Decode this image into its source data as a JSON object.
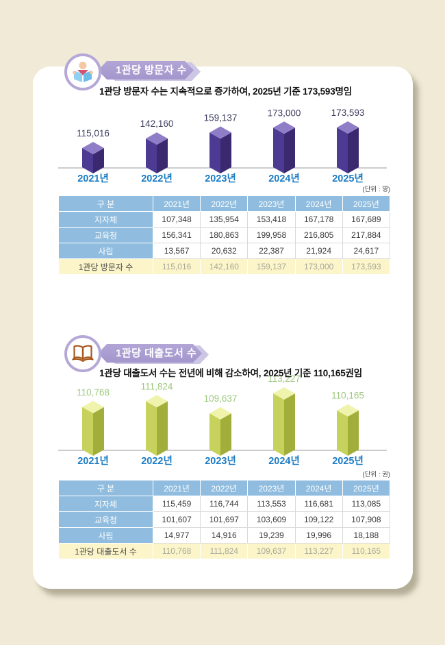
{
  "colors": {
    "page_bg": "#f1ead7",
    "card_bg": "#ffffff",
    "banner_purple": "#a89bd0",
    "banner_echo": "#cdc7e5",
    "table_header_blue": "#90bddf",
    "table_total_yellow": "#fcf5c9",
    "year_label_blue": "#1b7cc4"
  },
  "sections": [
    {
      "icon": "reading-person-icon",
      "banner": "1관당 방문자 수",
      "subtitle": "1관당 방문자 수는 지속적으로 증가하여, 2025년 기준 173,593명임",
      "unit": "(단위 : 명)",
      "table": {
        "corner": "구 분",
        "columns": [
          "2021년",
          "2022년",
          "2023년",
          "2024년",
          "2025년"
        ],
        "rows": [
          {
            "label": "지자체",
            "values": [
              "107,348",
              "135,954",
              "153,418",
              "167,178",
              "167,689"
            ]
          },
          {
            "label": "교육청",
            "values": [
              "156,341",
              "180,863",
              "199,958",
              "216,805",
              "217,884"
            ]
          },
          {
            "label": "사립",
            "values": [
              "13,567",
              "20,632",
              "22,387",
              "21,924",
              "24,617"
            ]
          }
        ],
        "total": {
          "label": "1관당 방문자 수",
          "values": [
            "115,016",
            "142,160",
            "159,137",
            "173,000",
            "173,593"
          ]
        }
      }
    },
    {
      "icon": "open-book-icon",
      "banner": "1관당 대출도서 수",
      "subtitle": "1관당 대출도서 수는 전년에 비해 감소하여, 2025년 기준 110,165권임",
      "unit": "(단위 : 권)",
      "table": {
        "corner": "구 분",
        "columns": [
          "2021년",
          "2022년",
          "2023년",
          "2024년",
          "2025년"
        ],
        "rows": [
          {
            "label": "지자체",
            "values": [
              "115,459",
              "116,744",
              "113,553",
              "116,681",
              "113,085"
            ]
          },
          {
            "label": "교육청",
            "values": [
              "101,607",
              "101,697",
              "103,609",
              "109,122",
              "107,908"
            ]
          },
          {
            "label": "사립",
            "values": [
              "14,977",
              "14,916",
              "19,239",
              "19,996",
              "18,188"
            ]
          }
        ],
        "total": {
          "label": "1관당 대출도서 수",
          "values": [
            "110,768",
            "111,824",
            "109,637",
            "113,227",
            "110,165"
          ]
        }
      }
    }
  ],
  "chart_data": [
    {
      "type": "bar",
      "title": "1관당 방문자 수",
      "categories": [
        "2021년",
        "2022년",
        "2023년",
        "2024년",
        "2025년"
      ],
      "values": [
        115016,
        142160,
        159137,
        173000,
        173593
      ],
      "labels": [
        "115,016",
        "142,160",
        "159,137",
        "173,000",
        "173,593"
      ],
      "unit": "(단위 : 명)",
      "legend": "none",
      "grid": "off",
      "bar_style": "3d-isometric",
      "colors": {
        "left": "#4d3a92",
        "right": "#3a296f",
        "top": "#8f7ec7",
        "value_label": "#3e3e60",
        "year_label": "#1b7cc4",
        "axis": "#9a9a9a"
      }
    },
    {
      "type": "bar",
      "title": "1관당 대출도서 수",
      "categories": [
        "2021년",
        "2022년",
        "2023년",
        "2024년",
        "2025년"
      ],
      "values": [
        110768,
        111824,
        109637,
        113227,
        110165
      ],
      "labels": [
        "110,768",
        "111,824",
        "109,637",
        "113,227",
        "110,165"
      ],
      "unit": "(단위 : 권)",
      "legend": "none",
      "grid": "off",
      "bar_style": "3d-isometric",
      "colors": {
        "left": "#c6d25b",
        "right": "#a2ae3a",
        "top": "#eff3ab",
        "value_label": "#9fc97f",
        "year_label": "#1b7cc4",
        "axis": "#9a9a9a"
      }
    }
  ]
}
